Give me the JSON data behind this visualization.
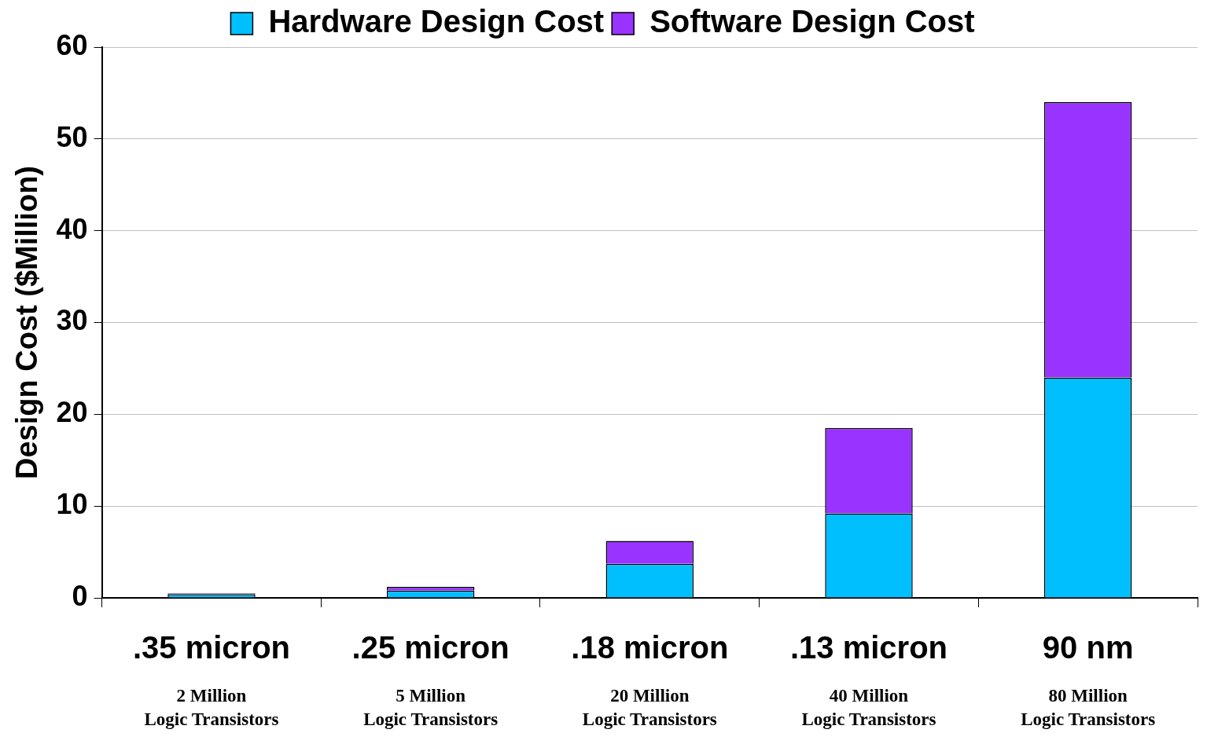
{
  "chart_data": {
    "type": "bar",
    "stacked": true,
    "ylabel": "Design Cost ($Million)",
    "categories": [
      ".35 micron",
      ".25 micron",
      ".18 micron",
      ".13 micron",
      "90 nm"
    ],
    "series": [
      {
        "name": "Hardware Design Cost",
        "color": "#00bfff",
        "values": [
          0.4,
          0.8,
          3.7,
          9.2,
          24
        ]
      },
      {
        "name": "Software Design Cost",
        "color": "#9933ff",
        "values": [
          0.1,
          0.4,
          2.5,
          9.3,
          30
        ]
      }
    ],
    "ylim": [
      0,
      60
    ],
    "yticks": [
      0,
      10,
      20,
      30,
      40,
      50,
      60
    ],
    "grid": "y",
    "legend": "top",
    "annotations": [
      "2 Million\nLogic Transistors",
      "5 Million\nLogic Transistors",
      "20 Million\nLogic Transistors",
      "40 Million\nLogic Transistors",
      "80 Million\nLogic Transistors"
    ]
  }
}
